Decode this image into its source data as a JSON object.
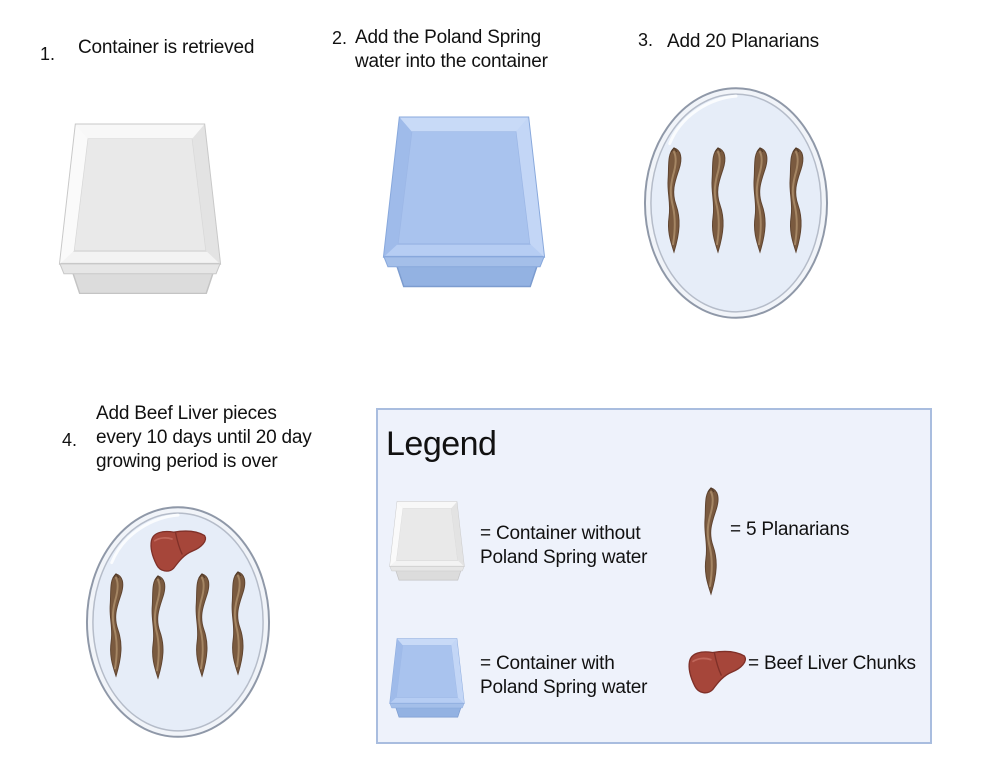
{
  "steps": [
    {
      "number": "1.",
      "text": [
        "Container is retrieved"
      ]
    },
    {
      "number": "2.",
      "text": [
        "Add the Poland Spring",
        "water into the container"
      ]
    },
    {
      "number": "3.",
      "text": [
        "Add 20 Planarians"
      ]
    },
    {
      "number": "4.",
      "text": [
        "Add Beef Liver pieces",
        "every 10 days until 20 day",
        "growing period is over"
      ]
    }
  ],
  "legend": {
    "title": "Legend",
    "items": [
      {
        "icon": "empty-container-icon",
        "text": [
          "= Container without",
          "Poland Spring water"
        ]
      },
      {
        "icon": "planarian-icon",
        "text": [
          "= 5 Planarians"
        ]
      },
      {
        "icon": "water-container-icon",
        "text": [
          "= Container with",
          "Poland Spring water"
        ]
      },
      {
        "icon": "beef-liver-icon",
        "text": [
          "= Beef Liver Chunks"
        ]
      }
    ]
  },
  "colors": {
    "empty_container": "#f2f2f2",
    "water_container": "#b6cdf3",
    "planarian": "#7a5a3f",
    "liver": "#a6463a",
    "dish": "#e6edf8",
    "legend_bg": "#eef2fb",
    "legend_border": "#a9bddf"
  }
}
